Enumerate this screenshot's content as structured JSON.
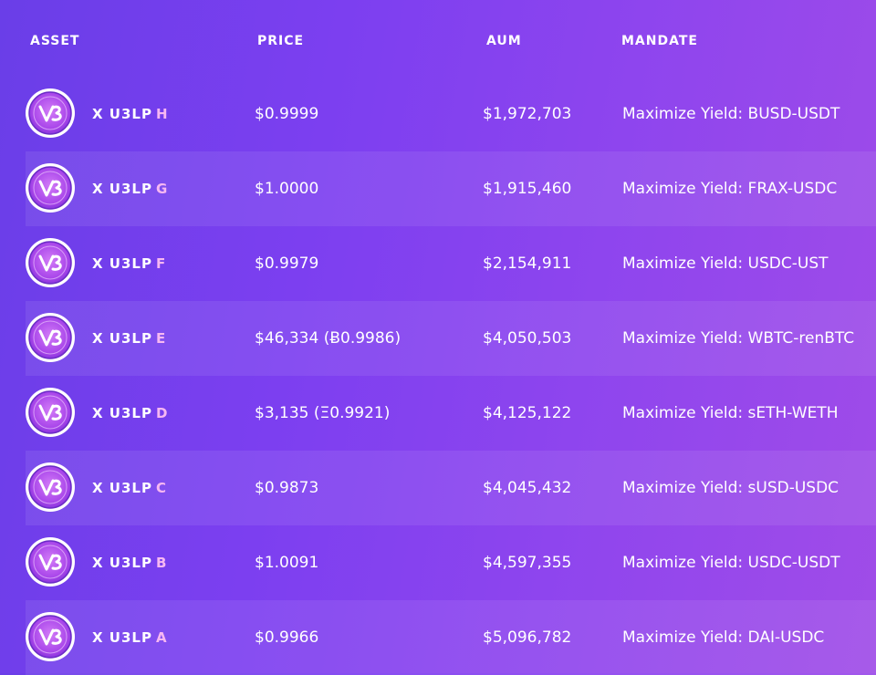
{
  "columns": {
    "asset": "ASSET",
    "price": "PRICE",
    "aum": "AUM",
    "mandate": "MANDATE"
  },
  "colors": {
    "background_start": "#6a3ee8",
    "background_end": "#a04ce8",
    "letter_accent": "#f7b8f2",
    "icon_ring": "#ffffff",
    "icon_fill": "#b650f0"
  },
  "icon_name": "u3lp-logo-icon",
  "rows": [
    {
      "prefix": "X U3LP",
      "letter": "H",
      "price": "$0.9999",
      "aum": "$1,972,703",
      "mandate": "Maximize Yield: BUSD-USDT"
    },
    {
      "prefix": "X U3LP",
      "letter": "G",
      "price": "$1.0000",
      "aum": "$1,915,460",
      "mandate": "Maximize Yield: FRAX-USDC"
    },
    {
      "prefix": "X U3LP",
      "letter": "F",
      "price": "$0.9979",
      "aum": "$2,154,911",
      "mandate": "Maximize Yield: USDC-UST"
    },
    {
      "prefix": "X U3LP",
      "letter": "E",
      "price": "$46,334 (Ƀ0.9986)",
      "aum": "$4,050,503",
      "mandate": "Maximize Yield: WBTC-renBTC"
    },
    {
      "prefix": "X U3LP",
      "letter": "D",
      "price": "$3,135 (Ξ0.9921)",
      "aum": "$4,125,122",
      "mandate": "Maximize Yield: sETH-WETH"
    },
    {
      "prefix": "X U3LP",
      "letter": "C",
      "price": "$0.9873",
      "aum": "$4,045,432",
      "mandate": "Maximize Yield: sUSD-USDC"
    },
    {
      "prefix": "X U3LP",
      "letter": "B",
      "price": "$1.0091",
      "aum": "$4,597,355",
      "mandate": "Maximize Yield: USDC-USDT"
    },
    {
      "prefix": "X U3LP",
      "letter": "A",
      "price": "$0.9966",
      "aum": "$5,096,782",
      "mandate": "Maximize Yield: DAI-USDC"
    }
  ]
}
